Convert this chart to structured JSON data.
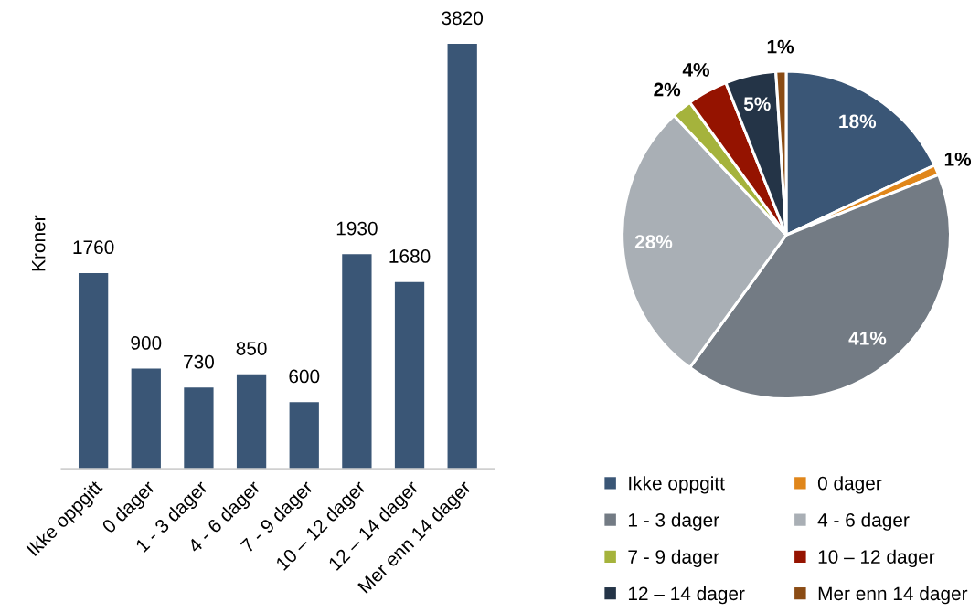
{
  "chart_data": [
    {
      "type": "bar",
      "ylabel": "Kroner",
      "categories": [
        "Ikke oppgitt",
        "0 dager",
        "1 - 3 dager",
        "4 - 6 dager",
        "7 - 9 dager",
        "10 – 12 dager",
        "12 – 14 dager",
        "Mer enn 14 dager"
      ],
      "values": [
        1760,
        900,
        730,
        850,
        600,
        1930,
        1680,
        3820
      ],
      "color": "#3a5676",
      "data_labels": true
    },
    {
      "type": "pie",
      "categories": [
        "Ikke oppgitt",
        "0 dager",
        "1 - 3 dager",
        "4 - 6 dager",
        "7 - 9 dager",
        "10 – 12 dager",
        "12 – 14 dager",
        "Mer enn 14 dager"
      ],
      "values": [
        18,
        1,
        41,
        28,
        2,
        4,
        5,
        1
      ],
      "colors": [
        "#3a5676",
        "#e0861a",
        "#737b84",
        "#a9afb5",
        "#a5b33c",
        "#951300",
        "#243447",
        "#8b4c14"
      ],
      "value_labels": [
        "18%",
        "1%",
        "41%",
        "28%",
        "2%",
        "4%",
        "5%",
        "1%"
      ],
      "legend": "bottom"
    }
  ]
}
